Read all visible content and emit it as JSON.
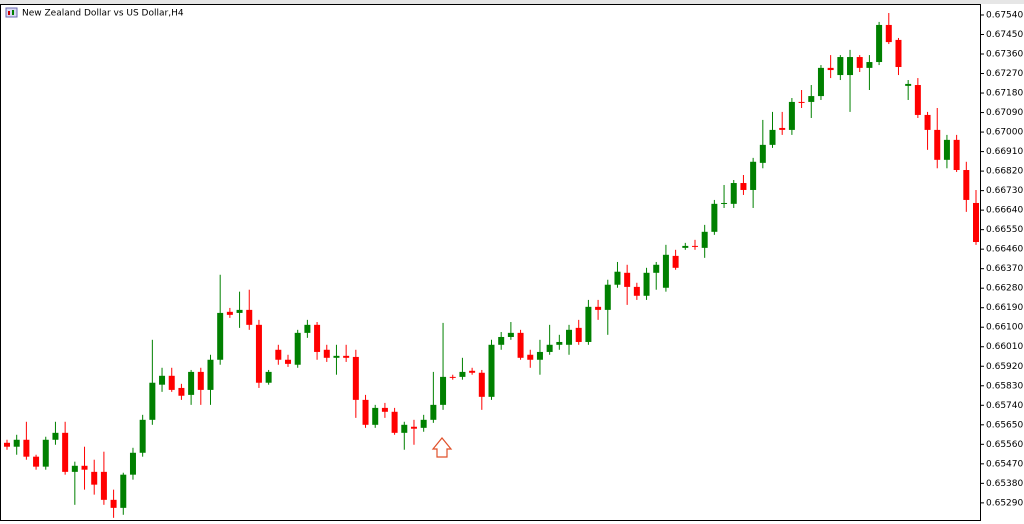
{
  "chart_data": {
    "type": "candlestick",
    "title": "New Zealand Dollar vs US Dollar,H4",
    "up_color": "#008000",
    "down_color": "#ff0000",
    "ylim": [
      0.65211,
      0.67586
    ],
    "yticks": [
      {
        "value": 0.6529,
        "label": "0.65290"
      },
      {
        "value": 0.6538,
        "label": "0.65380"
      },
      {
        "value": 0.6547,
        "label": "0.65470"
      },
      {
        "value": 0.6556,
        "label": "0.65560"
      },
      {
        "value": 0.6565,
        "label": "0.65650"
      },
      {
        "value": 0.6574,
        "label": "0.65740"
      },
      {
        "value": 0.6583,
        "label": "0.65830"
      },
      {
        "value": 0.6592,
        "label": "0.65920"
      },
      {
        "value": 0.6601,
        "label": "0.66010"
      },
      {
        "value": 0.661,
        "label": "0.66100"
      },
      {
        "value": 0.6619,
        "label": "0.66190"
      },
      {
        "value": 0.6628,
        "label": "0.66280"
      },
      {
        "value": 0.6637,
        "label": "0.66370"
      },
      {
        "value": 0.6646,
        "label": "0.66460"
      },
      {
        "value": 0.6655,
        "label": "0.66550"
      },
      {
        "value": 0.6664,
        "label": "0.66640"
      },
      {
        "value": 0.6673,
        "label": "0.66730"
      },
      {
        "value": 0.6682,
        "label": "0.66820"
      },
      {
        "value": 0.6691,
        "label": "0.66910"
      },
      {
        "value": 0.67,
        "label": "0.67000"
      },
      {
        "value": 0.6709,
        "label": "0.67090"
      },
      {
        "value": 0.6718,
        "label": "0.67180"
      },
      {
        "value": 0.6727,
        "label": "0.67270"
      },
      {
        "value": 0.6736,
        "label": "0.67360"
      },
      {
        "value": 0.6745,
        "label": "0.67450"
      },
      {
        "value": 0.6754,
        "label": "0.67540"
      }
    ],
    "open": [
      0.65567,
      0.65549,
      0.65581,
      0.65503,
      0.65457,
      0.65581,
      0.65613,
      0.65433,
      0.65461,
      0.65433,
      0.65433,
      0.65304,
      0.65267,
      0.6542,
      0.65521,
      0.65673,
      0.65835,
      0.65876,
      0.6582,
      0.65788,
      0.65894,
      0.65811,
      0.6595,
      0.66171,
      0.66166,
      0.6618,
      0.66111,
      0.65844,
      0.65996,
      0.6595,
      0.65927,
      0.66074,
      0.66111,
      0.65996,
      0.65959,
      0.65968,
      0.65963,
      0.65765,
      0.6565,
      0.65728,
      0.6571,
      0.65613,
      0.65641,
      0.65636,
      0.65673,
      0.65742,
      0.65871,
      0.65871,
      0.65899,
      0.6589,
      0.65779,
      0.66019,
      0.66055,
      0.66074,
      0.65973,
      0.6595,
      0.65986,
      0.66019,
      0.66019,
      0.66097,
      0.66032,
      0.66194,
      0.6618,
      0.66296,
      0.66351,
      0.66286,
      0.66245,
      0.66351,
      0.66282,
      0.66429,
      0.66466,
      0.66475,
      0.66466,
      0.6654,
      0.66669,
      0.66669,
      0.66765,
      0.66733,
      0.66858,
      0.66941,
      0.67019,
      0.6701,
      0.67139,
      0.67139,
      0.67166,
      0.67296,
      0.67263,
      0.67263,
      0.67346,
      0.67296,
      0.67323,
      0.67494,
      0.67425,
      0.67213,
      0.67217,
      0.67079,
      0.6701,
      0.66872,
      0.66964,
      0.66825,
      0.66673
    ],
    "high": [
      0.65581,
      0.65604,
      0.65664,
      0.65512,
      0.65595,
      0.65664,
      0.65664,
      0.6548,
      0.65549,
      0.65489,
      0.65526,
      0.65351,
      0.65429,
      0.65544,
      0.65696,
      0.66042,
      0.65913,
      0.65913,
      0.65839,
      0.65903,
      0.65913,
      0.65973,
      0.66342,
      0.66189,
      0.66264,
      0.66273,
      0.66134,
      0.65903,
      0.66019,
      0.65973,
      0.66088,
      0.66134,
      0.66124,
      0.66019,
      0.66019,
      0.66019,
      0.65996,
      0.65788,
      0.65742,
      0.65751,
      0.65728,
      0.65664,
      0.65673,
      0.65696,
      0.65894,
      0.6612,
      0.65881,
      0.65959,
      0.65913,
      0.65903,
      0.66042,
      0.66078,
      0.66124,
      0.66088,
      0.65996,
      0.66042,
      0.66111,
      0.66065,
      0.66111,
      0.66134,
      0.66226,
      0.66226,
      0.66319,
      0.66401,
      0.66388,
      0.66305,
      0.66374,
      0.66401,
      0.6648,
      0.66457,
      0.66489,
      0.66503,
      0.66572,
      0.66687,
      0.66756,
      0.66779,
      0.66802,
      0.66881,
      0.67056,
      0.67093,
      0.67093,
      0.67157,
      0.67194,
      0.67217,
      0.67309,
      0.67355,
      0.67355,
      0.67379,
      0.67355,
      0.67355,
      0.67508,
      0.67549,
      0.67434,
      0.6724,
      0.67249,
      0.67093,
      0.67111,
      0.66987,
      0.66987,
      0.66863,
      0.66733
    ],
    "low": [
      0.65535,
      0.65512,
      0.65489,
      0.65443,
      0.65443,
      0.65558,
      0.6542,
      0.65281,
      0.65351,
      0.65328,
      0.65281,
      0.65221,
      0.65235,
      0.65397,
      0.65503,
      0.6565,
      0.65802,
      0.65802,
      0.65765,
      0.65742,
      0.65742,
      0.65742,
      0.65927,
      0.66143,
      0.66097,
      0.66088,
      0.6582,
      0.65835,
      0.65927,
      0.65917,
      0.65913,
      0.66051,
      0.6595,
      0.6594,
      0.65881,
      0.6594,
      0.65682,
      0.65636,
      0.65636,
      0.65682,
      0.65604,
      0.65535,
      0.65558,
      0.65618,
      0.65659,
      0.65719,
      0.65858,
      0.65858,
      0.65881,
      0.65719,
      0.65765,
      0.65996,
      0.66042,
      0.6595,
      0.65913,
      0.65881,
      0.65973,
      0.65996,
      0.65973,
      0.66019,
      0.66019,
      0.66134,
      0.66065,
      0.66282,
      0.66203,
      0.66226,
      0.66226,
      0.66273,
      0.66264,
      0.66365,
      0.66457,
      0.66457,
      0.6642,
      0.66526,
      0.6665,
      0.6665,
      0.6671,
      0.6665,
      0.66833,
      0.66927,
      0.66987,
      0.66987,
      0.67111,
      0.67065,
      0.67148,
      0.67249,
      0.6724,
      0.67093,
      0.67277,
      0.67194,
      0.67309,
      0.67406,
      0.67263,
      0.67148,
      0.67065,
      0.66918,
      0.66833,
      0.66833,
      0.66816,
      0.66632,
      0.6648
    ],
    "close": [
      0.65549,
      0.65581,
      0.65503,
      0.65457,
      0.65581,
      0.65613,
      0.65433,
      0.65461,
      0.65443,
      0.65374,
      0.65304,
      0.65267,
      0.6542,
      0.65521,
      0.65673,
      0.65844,
      0.65876,
      0.65811,
      0.65784,
      0.65894,
      0.65811,
      0.6595,
      0.66166,
      0.66157,
      0.6618,
      0.66111,
      0.65844,
      0.65894,
      0.6595,
      0.65931,
      0.66074,
      0.66111,
      0.65986,
      0.65959,
      0.65968,
      0.65959,
      0.65765,
      0.6565,
      0.65728,
      0.6571,
      0.65613,
      0.6565,
      0.65632,
      0.65673,
      0.65742,
      0.65871,
      0.65867,
      0.65894,
      0.6589,
      0.65779,
      0.66019,
      0.66055,
      0.66074,
      0.65959,
      0.6595,
      0.65986,
      0.66019,
      0.66032,
      0.66088,
      0.66032,
      0.66194,
      0.6618,
      0.66296,
      0.66356,
      0.66286,
      0.66245,
      0.66351,
      0.66388,
      0.66434,
      0.66374,
      0.66475,
      0.66471,
      0.6654,
      0.66669,
      0.66673,
      0.66765,
      0.66733,
      0.66863,
      0.66941,
      0.6701,
      0.6701,
      0.67139,
      0.67135,
      0.67166,
      0.67296,
      0.67286,
      0.67346,
      0.67346,
      0.67296,
      0.67323,
      0.67494,
      0.67415,
      0.673,
      0.67222,
      0.67079,
      0.6701,
      0.66872,
      0.66964,
      0.66825,
      0.66687,
      0.66493
    ]
  }
}
